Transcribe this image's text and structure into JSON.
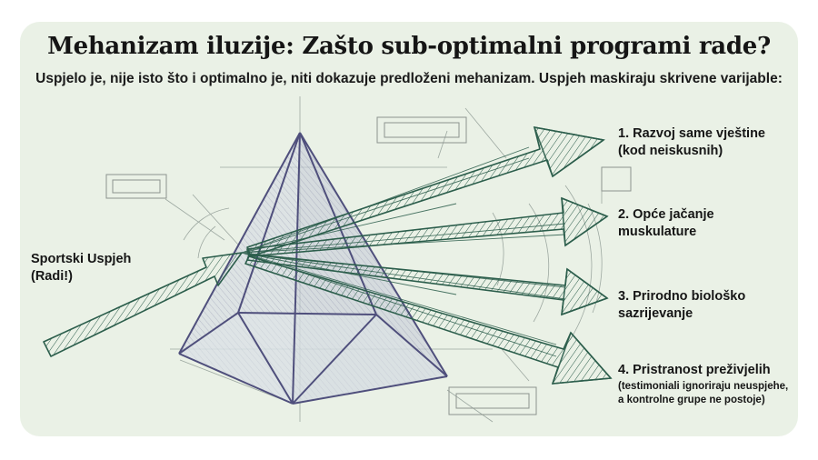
{
  "title": "Mehanizam iluzije: Zašto sub-optimalni programi rade?",
  "subtitle": "Uspjelo je, nije isto što i optimalno je, niti dokazuje predloženi mehanizam. Uspjeh maskiraju skrivene varijable:",
  "input_label": {
    "line1": "Sportski Uspjeh",
    "line2": "(Radi!)"
  },
  "outputs": [
    {
      "line1": "1. Razvoj same vještine",
      "line2": "(kod neiskusnih)"
    },
    {
      "line1": "2. Opće jačanje",
      "line2": "muskulature"
    },
    {
      "line1": "3. Prirodno biološko",
      "line2": "sazrijevanje"
    },
    {
      "line1": "4. Pristranost preživjelih",
      "note1": "(testimoniali ignoriraju neuspjehe,",
      "note2": "a kontrolne grupe ne postoje)"
    }
  ],
  "colors": {
    "card": "#eaf1e6",
    "arrow": "#2c5e4c",
    "prism": "#5a5a86",
    "sketch": "#7d8a84"
  }
}
